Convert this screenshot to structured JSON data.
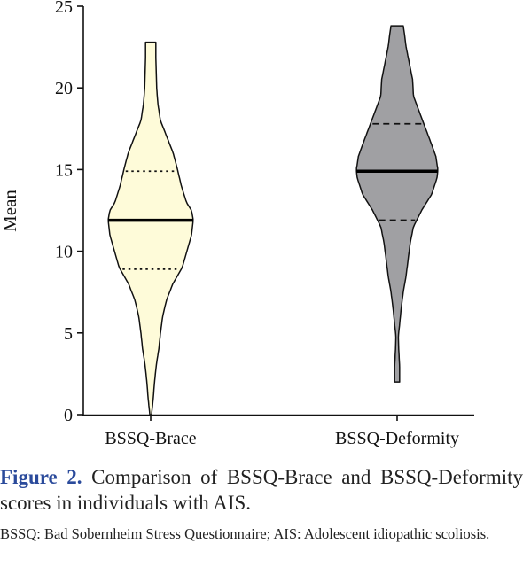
{
  "figure": {
    "label": "Figure 2.",
    "caption": " Comparison of BSSQ-Brace and BSSQ-Deformity scores in individuals with AIS.",
    "note": "BSSQ: Bad Sobernheim Stress Questionnaire; AIS: Adolescent idiopathic scoliosis."
  },
  "chart_data": {
    "type": "violin",
    "title": "",
    "xlabel": "",
    "ylabel": "Mean",
    "ylim": [
      0,
      25
    ],
    "yticks": [
      0,
      5,
      10,
      15,
      20,
      25
    ],
    "grid": false,
    "legend": "none",
    "categories": [
      "BSSQ-Brace",
      "BSSQ-Deformity"
    ],
    "series": [
      {
        "category": "BSSQ-Brace",
        "fill": "#fefbd9",
        "median": 11.9,
        "q1": 8.9,
        "q3": 14.9,
        "quartile_style": "dotted",
        "min": 0,
        "max": 22.8,
        "density": [
          [
            0,
            0.02
          ],
          [
            1,
            0.06
          ],
          [
            2,
            0.09
          ],
          [
            3,
            0.13
          ],
          [
            4,
            0.19
          ],
          [
            5,
            0.23
          ],
          [
            6,
            0.28
          ],
          [
            7,
            0.37
          ],
          [
            8,
            0.52
          ],
          [
            9,
            0.74
          ],
          [
            10,
            0.85
          ],
          [
            11,
            0.96
          ],
          [
            11.9,
            1.0
          ],
          [
            12.5,
            0.96
          ],
          [
            13,
            0.84
          ],
          [
            14,
            0.72
          ],
          [
            15,
            0.63
          ],
          [
            16,
            0.53
          ],
          [
            17,
            0.38
          ],
          [
            18,
            0.23
          ],
          [
            19,
            0.17
          ],
          [
            20,
            0.14
          ],
          [
            21,
            0.13
          ],
          [
            22,
            0.12
          ],
          [
            22.8,
            0.12
          ]
        ]
      },
      {
        "category": "BSSQ-Deformity",
        "fill": "#a0a0a3",
        "median": 14.9,
        "q1": 11.9,
        "q3": 17.8,
        "quartile_style": "dashed",
        "min": 2,
        "max": 23.8,
        "density": [
          [
            2,
            0.06
          ],
          [
            3,
            0.06
          ],
          [
            3.5,
            0.05
          ],
          [
            4,
            0.04
          ],
          [
            4.8,
            0.03
          ],
          [
            5.5,
            0.06
          ],
          [
            6.5,
            0.1
          ],
          [
            7.5,
            0.15
          ],
          [
            8.5,
            0.22
          ],
          [
            9.5,
            0.27
          ],
          [
            10.5,
            0.32
          ],
          [
            11.5,
            0.4
          ],
          [
            12.5,
            0.6
          ],
          [
            13.5,
            0.85
          ],
          [
            14.5,
            0.98
          ],
          [
            15,
            1.0
          ],
          [
            15.8,
            0.95
          ],
          [
            16.5,
            0.85
          ],
          [
            17.5,
            0.7
          ],
          [
            18.5,
            0.55
          ],
          [
            19.5,
            0.4
          ],
          [
            20.5,
            0.38
          ],
          [
            21.5,
            0.3
          ],
          [
            22.5,
            0.22
          ],
          [
            23.3,
            0.18
          ],
          [
            23.8,
            0.15
          ]
        ]
      }
    ]
  }
}
